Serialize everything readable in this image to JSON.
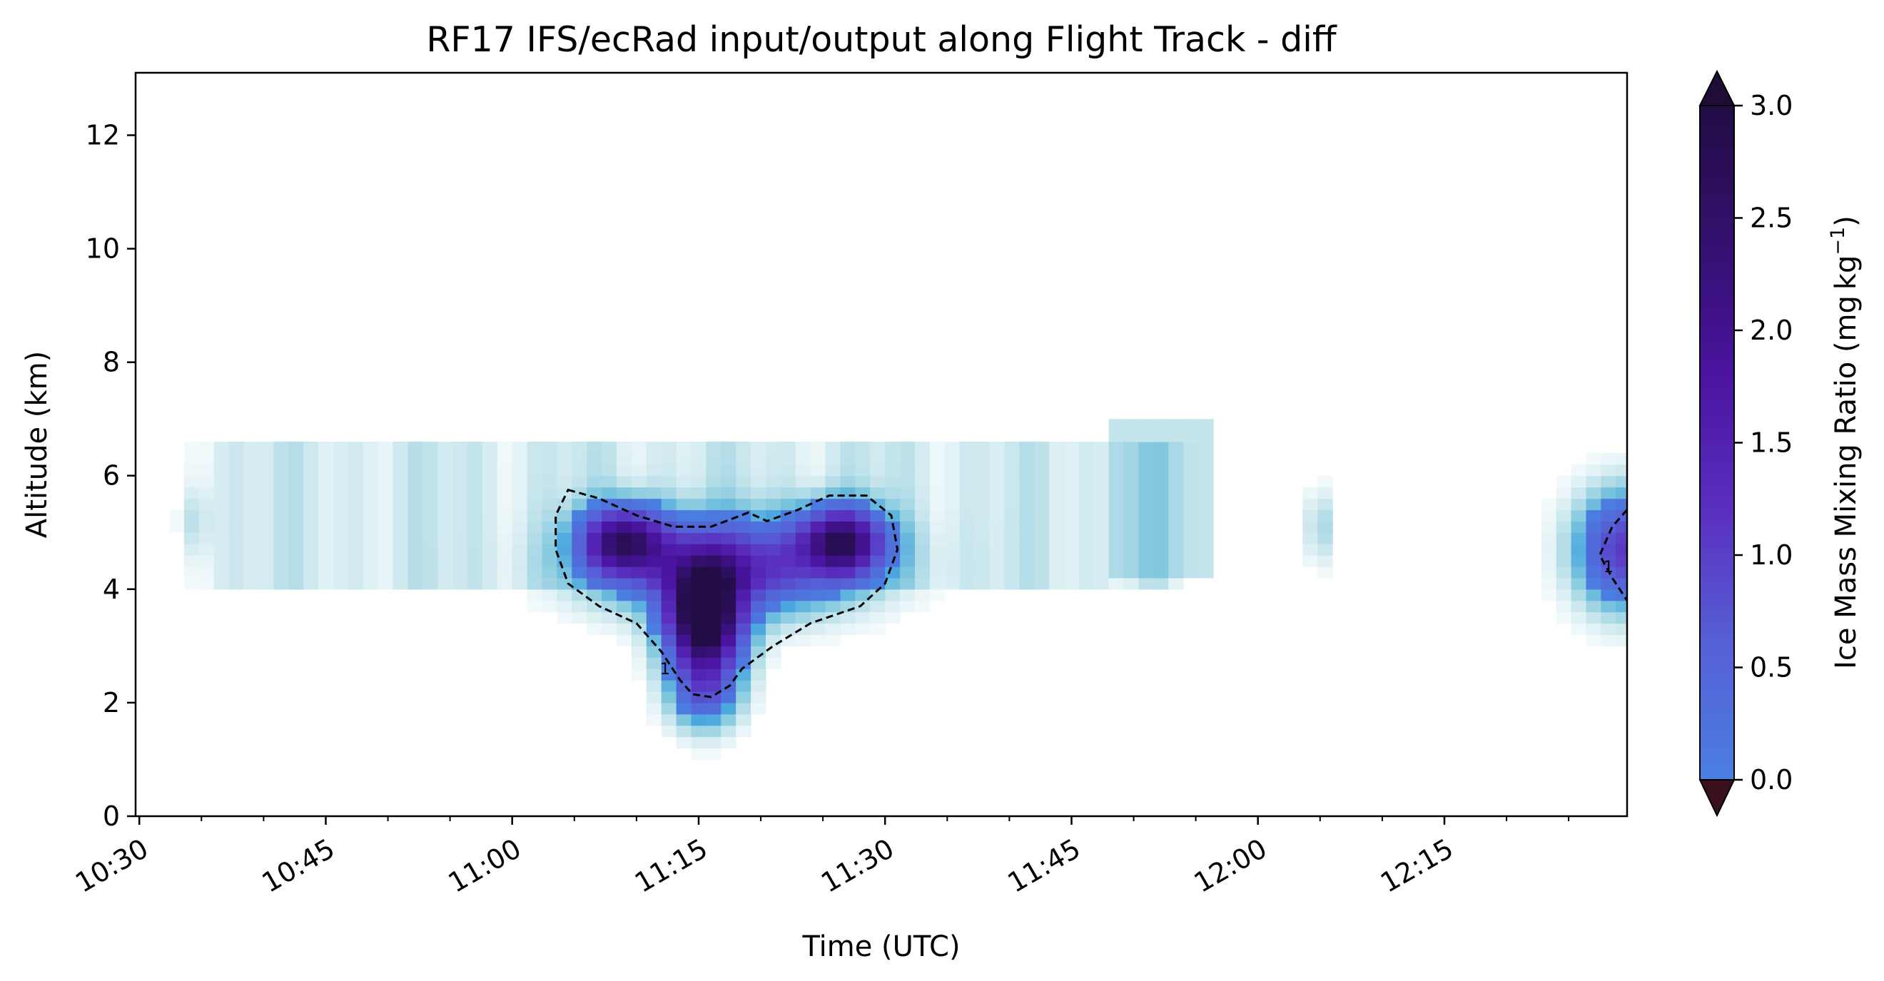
{
  "chart_data": {
    "type": "heatmap",
    "title": "RF17 IFS/ecRad input/output along Flight Track - diff",
    "xlabel": "Time (UTC)",
    "ylabel": "Altitude (km)",
    "colorbar_label": "Ice Mass Mixing Ratio (mg kg",
    "colorbar_label_exponent": "−1",
    "colorbar_label_close": ")",
    "x_time_range": [
      "10:30",
      "12:30"
    ],
    "xlim_minutes_after_1030": [
      -0.3,
      119.7
    ],
    "ylim": [
      0,
      13.1
    ],
    "x_ticks": [
      "10:30",
      "10:45",
      "11:00",
      "11:15",
      "11:30",
      "11:45",
      "12:00",
      "12:15"
    ],
    "y_ticks": [
      "0",
      "2",
      "4",
      "6",
      "8",
      "10",
      "12"
    ],
    "colorbar_ticks": [
      "0.0",
      "0.5",
      "1.0",
      "1.5",
      "2.0",
      "2.5",
      "3.0"
    ],
    "colorbar_range": [
      0,
      3.0
    ],
    "colorbar_extend": "both",
    "colormap": [
      "#4a7fe0",
      "#5660d6",
      "#5a2fc0",
      "#4a14a0",
      "#33106e",
      "#220d44"
    ],
    "background_colormap": [
      "#ffffff",
      "#bfe2ea",
      "#7ec6dd",
      "#4aa6e0"
    ],
    "contour_level": 1,
    "contour_style": "dashed",
    "contour_label": "1",
    "features": [
      {
        "name": "main ice cloud",
        "time_range": [
          "11:04",
          "11:31"
        ],
        "alt_range_km": [
          2.0,
          5.8
        ],
        "max": 3.0
      },
      {
        "name": "dense core",
        "time_range": [
          "11:13",
          "11:18"
        ],
        "alt_range_km": [
          2.6,
          4.4
        ],
        "max": 3.0
      },
      {
        "name": "thin layer",
        "time_range": [
          "10:33",
          "11:55"
        ],
        "alt_range_km": [
          4.0,
          7.0
        ],
        "max": 0.3
      },
      {
        "name": "edge cloud",
        "time_range": [
          "12:26",
          "12:30"
        ],
        "alt_range_km": [
          2.8,
          6.3
        ],
        "max": 1.4
      }
    ]
  }
}
